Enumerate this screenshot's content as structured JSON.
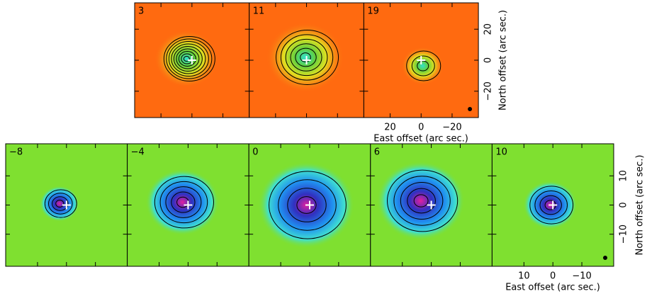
{
  "top_row": {
    "panels": [
      "3",
      "11",
      "19"
    ],
    "x_label": "East offset (arc sec.)",
    "y_label": "North offset (arc sec.)",
    "xlim": [
      37,
      -37
    ],
    "ylim": [
      -37,
      37
    ],
    "xticks": [
      20,
      0,
      {
        "value": -20,
        "label": "−20"
      }
    ],
    "yticks": [
      20,
      0,
      {
        "value": -20,
        "label": "−20"
      }
    ]
  },
  "bottom_row": {
    "panels": [
      "−8",
      "−4",
      "0",
      "6",
      "10"
    ],
    "x_label": "East offset (arc sec.)",
    "y_label": "North offset (arc sec.)",
    "xlim": [
      21,
      -21
    ],
    "ylim": [
      -21,
      21
    ],
    "xticks": [
      10,
      0,
      {
        "value": -10,
        "label": "−10"
      }
    ],
    "yticks": [
      10,
      0,
      {
        "value": -10,
        "label": "−10"
      }
    ]
  }
}
